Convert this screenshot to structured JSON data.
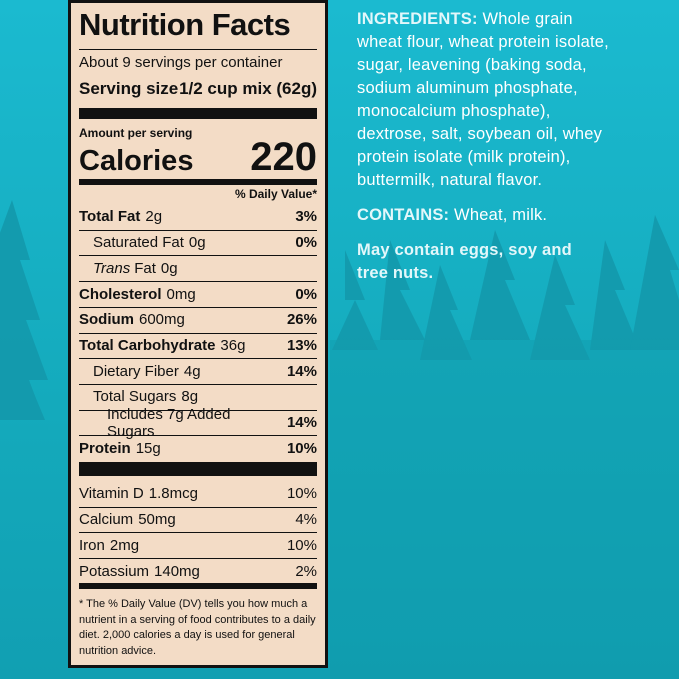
{
  "nutrition": {
    "title": "Nutrition Facts",
    "servings": "About 9 servings per container",
    "serving_size_label": "Serving size",
    "serving_size_value": "1/2 cup mix (62g)",
    "amount_per_serving": "Amount per serving",
    "calories_label": "Calories",
    "calories_value": "220",
    "daily_value_header": "% Daily Value*",
    "nutrients": [
      {
        "name": "Total Fat",
        "amount": "2g",
        "dv": "3%"
      },
      {
        "name": "Saturated Fat",
        "amount": "0g",
        "dv": "0%"
      },
      {
        "prefix": "Trans",
        "name": "Fat",
        "amount": "0g"
      },
      {
        "name": "Cholesterol",
        "amount": "0mg",
        "dv": "0%"
      },
      {
        "name": "Sodium",
        "amount": "600mg",
        "dv": "26%"
      },
      {
        "name": "Total Carbohydrate",
        "amount": "36g",
        "dv": "13%"
      },
      {
        "name": "Dietary Fiber",
        "amount": "4g",
        "dv": "14%"
      },
      {
        "name": "Total Sugars",
        "amount": "8g"
      },
      {
        "name": "Includes 7g Added Sugars",
        "dv": "14%"
      },
      {
        "name": "Protein",
        "amount": "15g",
        "dv": "10%"
      }
    ],
    "vitamins": [
      {
        "name": "Vitamin D",
        "amount": "1.8mcg",
        "dv": "10%"
      },
      {
        "name": "Calcium",
        "amount": "50mg",
        "dv": "4%"
      },
      {
        "name": "Iron",
        "amount": "2mg",
        "dv": "10%"
      },
      {
        "name": "Potassium",
        "amount": "140mg",
        "dv": "2%"
      }
    ],
    "footnote": "* The % Daily Value (DV) tells you how much a nutrient in a serving of food contributes to a daily diet. 2,000 calories a day is used for general nutrition advice."
  },
  "ingredients": {
    "label": "INGREDIENTS:",
    "text": "Whole grain wheat flour, wheat protein isolate, sugar, leavening (baking soda, sodium aluminum phosphate, monocalcium phosphate), dextrose, salt, soybean oil, whey protein isolate (milk protein), buttermilk, natural flavor."
  },
  "contains": {
    "label": "CONTAINS:",
    "text": "Wheat, milk."
  },
  "may_contain": "May contain eggs, soy and tree nuts."
}
